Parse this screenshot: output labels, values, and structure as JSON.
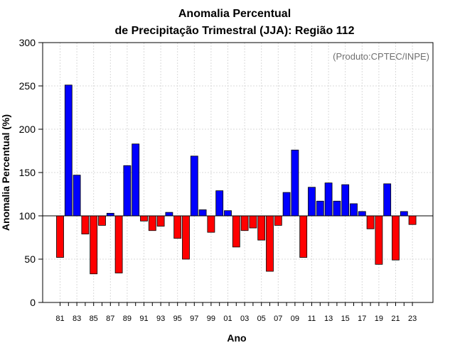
{
  "chart_data": {
    "type": "bar",
    "title": [
      "Anomalia Percentual",
      "de Precipitação Trimestral (JJA): Região 112"
    ],
    "xlabel": "Ano",
    "ylabel": "Anomalia Percentual (%)",
    "credit": "(Produto:CPTEC/INPE)",
    "baseline": 100,
    "ylim": [
      0,
      300
    ],
    "yticks": [
      0,
      50,
      100,
      150,
      200,
      250,
      300
    ],
    "grid": true,
    "colors": {
      "above": "#0000ff",
      "below": "#ff0000",
      "edge": "#000000",
      "grid": "#d9d9d9"
    },
    "categories": [
      "81",
      "82",
      "83",
      "84",
      "85",
      "86",
      "87",
      "88",
      "89",
      "90",
      "91",
      "92",
      "93",
      "94",
      "95",
      "96",
      "97",
      "98",
      "99",
      "00",
      "01",
      "02",
      "03",
      "04",
      "05",
      "06",
      "07",
      "08",
      "09",
      "10",
      "11",
      "12",
      "13",
      "14",
      "15",
      "16",
      "17",
      "18",
      "19",
      "20",
      "21",
      "22",
      "23"
    ],
    "tick_labels": [
      "81",
      "83",
      "85",
      "87",
      "89",
      "91",
      "93",
      "95",
      "97",
      "99",
      "01",
      "03",
      "05",
      "07",
      "09",
      "11",
      "13",
      "15",
      "17",
      "19",
      "21",
      "23"
    ],
    "values": [
      52,
      251,
      147,
      79,
      33,
      89,
      103,
      34,
      158,
      183,
      94,
      83,
      88,
      104,
      74,
      50,
      169,
      107,
      81,
      129,
      106,
      64,
      83,
      86,
      72,
      36,
      89,
      127,
      176,
      52,
      133,
      117,
      138,
      117,
      136,
      114,
      105,
      85,
      44,
      137,
      49,
      105,
      90
    ]
  }
}
